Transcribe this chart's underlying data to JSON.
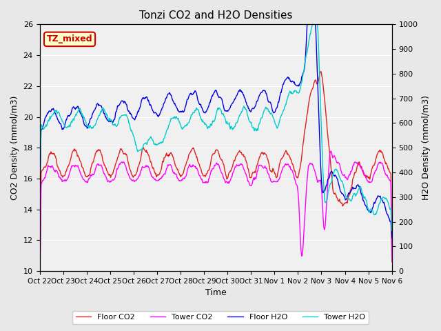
{
  "title": "Tonzi CO2 and H2O Densities",
  "xlabel": "Time",
  "ylabel_left": "CO2 Density (mmol/m3)",
  "ylabel_right": "H2O Density (mmol/m3)",
  "ylim_left": [
    10,
    26
  ],
  "ylim_right": [
    0,
    1000
  ],
  "annotation_text": "TZ_mixed",
  "annotation_color": "#cc0000",
  "annotation_bg": "#ffffcc",
  "annotation_border": "#cc0000",
  "colors": {
    "floor_co2": "#dd2222",
    "tower_co2": "#ff00ff",
    "floor_h2o": "#0000dd",
    "tower_h2o": "#00cccc"
  },
  "legend_labels": [
    "Floor CO2",
    "Tower CO2",
    "Floor H2O",
    "Tower H2O"
  ],
  "xtick_labels": [
    "Oct 22",
    "Oct 23",
    "Oct 24",
    "Oct 25",
    "Oct 26",
    "Oct 27",
    "Oct 28",
    "Oct 29",
    "Oct 30",
    "Oct 31",
    "Nov 1",
    "Nov 2",
    "Nov 3",
    "Nov 4",
    "Nov 5",
    "Nov 6"
  ],
  "bg_color": "#e8e8e8",
  "plot_bg": "#f0f0f0"
}
